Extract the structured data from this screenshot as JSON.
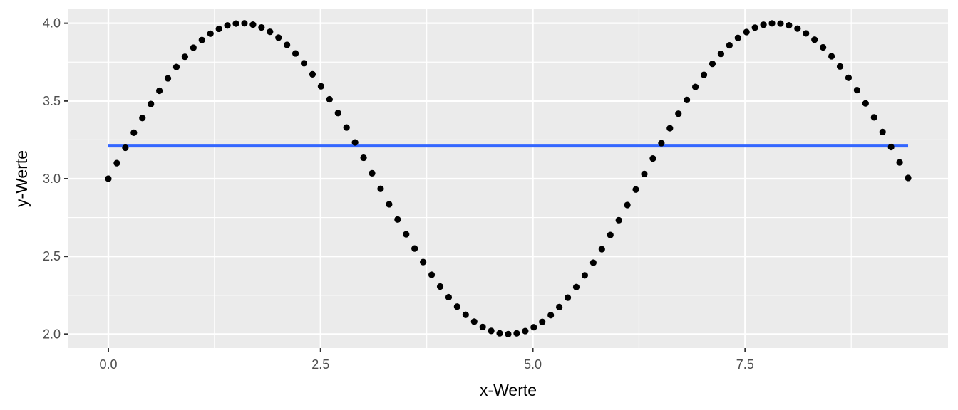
{
  "chart_data": {
    "type": "scatter",
    "title": "",
    "xlabel": "x-Werte",
    "ylabel": "y-Werte",
    "xlim": [
      -0.47,
      9.89
    ],
    "ylim": [
      1.91,
      4.09
    ],
    "x_ticks": [
      0,
      2.5,
      5,
      7.5
    ],
    "x_tick_labels": [
      "0.0",
      "2.5",
      "5.0",
      "7.5"
    ],
    "x_minor_ticks": [
      1.25,
      3.75,
      6.25,
      8.75
    ],
    "y_ticks": [
      2,
      2.5,
      3,
      3.5,
      4
    ],
    "y_tick_labels": [
      "2.0",
      "2.5",
      "3.0",
      "3.5",
      "4.0"
    ],
    "y_minor_ticks": [
      2.25,
      2.75,
      3.25,
      3.75
    ],
    "grid": true,
    "legend": "none",
    "points": {
      "x_start": 0,
      "x_end": 9.42,
      "count": 95,
      "formula": "y = 3 + sin(x)",
      "color": "#000000"
    },
    "mean_line": {
      "y": 3.21,
      "x_range": [
        0,
        9.42
      ],
      "color": "#3366FF"
    },
    "colors": {
      "panel_background": "#EBEBEB",
      "grid": "#FFFFFF"
    }
  }
}
